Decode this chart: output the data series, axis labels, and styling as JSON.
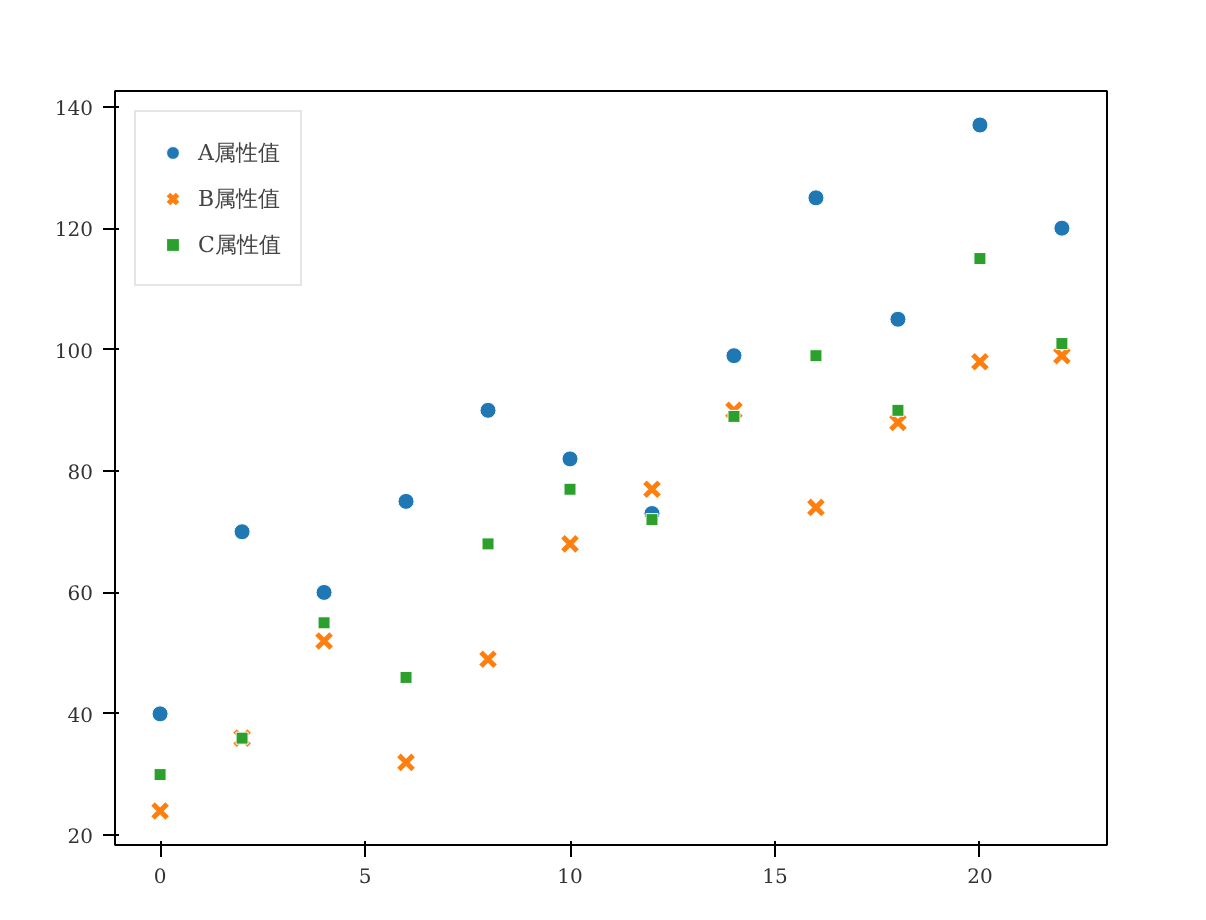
{
  "chart_data": {
    "type": "scatter",
    "x": [
      0,
      2,
      4,
      6,
      8,
      10,
      12,
      14,
      16,
      18,
      20,
      22
    ],
    "series": [
      {
        "name": "A属性值",
        "color": "#1f77b4",
        "marker": "circle",
        "values": [
          40,
          70,
          60,
          75,
          90,
          82,
          73,
          99,
          125,
          105,
          137,
          120
        ]
      },
      {
        "name": "B属性值",
        "color": "#ff7f0e",
        "marker": "cross",
        "values": [
          24,
          36,
          52,
          32,
          49,
          68,
          77,
          90,
          74,
          88,
          98,
          99
        ]
      },
      {
        "name": "C属性值",
        "color": "#2ca02c",
        "marker": "square",
        "values": [
          30,
          36,
          55,
          46,
          68,
          77,
          72,
          89,
          99,
          90,
          115,
          101
        ]
      }
    ],
    "xlim": [
      -1.1,
      23.1
    ],
    "ylim": [
      18.4,
      142.6
    ],
    "xticks": [
      0,
      5,
      10,
      15,
      20
    ],
    "yticks": [
      20,
      40,
      60,
      80,
      100,
      120,
      140
    ],
    "grid": false,
    "legend": "top left"
  }
}
